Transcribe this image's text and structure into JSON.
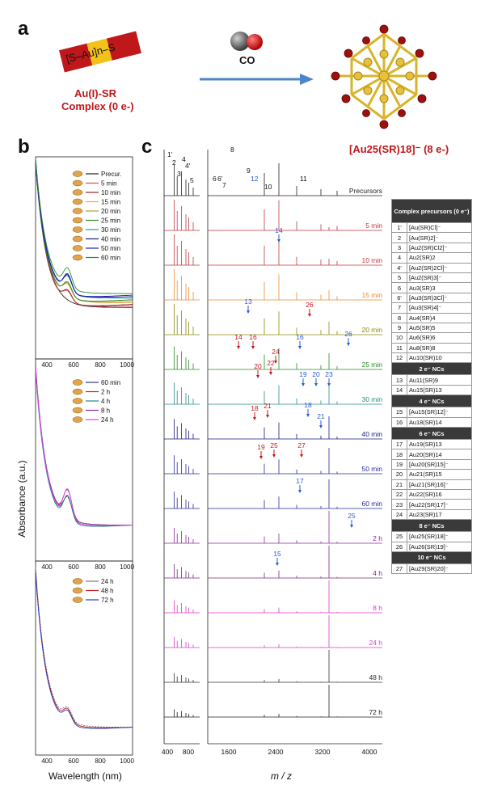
{
  "panel_a": {
    "label": "a",
    "complex_box": "[S–Au]n–S",
    "complex_name_line1": "Au(I)-SR",
    "complex_name_line2": "Complex (0 e-)",
    "reagent": "CO",
    "product": "[Au25(SR)18]⁻ (8 e-)"
  },
  "panel_b": {
    "label": "b",
    "y_axis_label": "Absorbance (a.u.)",
    "x_axis_label": "Wavelength (nm)",
    "x_ticks": [
      "400",
      "600",
      "800",
      "1000"
    ],
    "legend1": [
      "Precur.",
      "5 min",
      "10 min",
      "15 min",
      "20 min",
      "25 min",
      "30 min",
      "40 min",
      "50 min",
      "60 min"
    ],
    "legend2": [
      "60 min",
      "2 h",
      "4 h",
      "8 h",
      "24 h"
    ],
    "legend3": [
      "24 h",
      "48 h",
      "72 h"
    ],
    "colors1": [
      "#222222",
      "#e0474c",
      "#8a2a2a",
      "#f0a24a",
      "#b0a030",
      "#2e8b2e",
      "#2a9a9a",
      "#1a1a7a",
      "#2020c0",
      "#2a8a2a"
    ],
    "colors2": [
      "#2a3a8a",
      "#c02020",
      "#1a8a8a",
      "#8030a0",
      "#e040e0"
    ],
    "colors3": [
      "#777777",
      "#c02020",
      "#2040c0"
    ]
  },
  "panel_c": {
    "label": "c",
    "x_axis_label": "m / z",
    "x_ticks_left": [
      "400",
      "800"
    ],
    "x_ticks_right": [
      "1600",
      "2400",
      "3200",
      "4000"
    ],
    "traces": [
      {
        "label": "Precursors",
        "color": "#222222"
      },
      {
        "label": "5 min",
        "color": "#c0393e"
      },
      {
        "label": "10 min",
        "color": "#c0393e"
      },
      {
        "label": "15 min",
        "color": "#f08a30"
      },
      {
        "label": "20 min",
        "color": "#8a8a10"
      },
      {
        "label": "25 min",
        "color": "#2a8a2a"
      },
      {
        "label": "30 min",
        "color": "#2a8a8a"
      },
      {
        "label": "40 min",
        "color": "#1a1a80"
      },
      {
        "label": "50 min",
        "color": "#2a2aa0"
      },
      {
        "label": "60 min",
        "color": "#2a2aa0"
      },
      {
        "label": "2 h",
        "color": "#8a2aa0"
      },
      {
        "label": "4 h",
        "color": "#7a2a80"
      },
      {
        "label": "8 h",
        "color": "#e03ad0"
      },
      {
        "label": "24 h",
        "color": "#e03ad0"
      },
      {
        "label": "48 h",
        "color": "#333333"
      },
      {
        "label": "72 h",
        "color": "#222222"
      }
    ],
    "precursor_peak_labels": [
      "1'",
      "2",
      "3",
      "4",
      "4'",
      "5",
      "6",
      "6'",
      "7",
      "8",
      "9",
      "12",
      "10",
      "11"
    ],
    "annotations": {
      "t5": [
        "14"
      ],
      "t15": [
        "13",
        "26"
      ],
      "t20": [
        "14",
        "16",
        "16",
        "26"
      ],
      "t25": [
        "20",
        "22",
        "24",
        "19",
        "20",
        "23"
      ],
      "t30": [
        "18",
        "21",
        "18",
        "21"
      ],
      "t40": [
        "19",
        "25",
        "27"
      ],
      "t50": [
        "17"
      ],
      "t60": [
        "25"
      ],
      "t2h": [
        "15"
      ]
    }
  },
  "table": {
    "sections": [
      {
        "header": "Complex precursors (0 e⁻)",
        "rows": [
          [
            "1'",
            "[Au(SR)Cl]⁻"
          ],
          [
            "2",
            "[Au(SR)2]⁻"
          ],
          [
            "3",
            "[Au2(SR)Cl2]⁻"
          ],
          [
            "4",
            "Au2(SR)2"
          ],
          [
            "4'",
            "[Au2(SR)2Cl]⁻"
          ],
          [
            "5",
            "[Au2(SR)3]⁻"
          ],
          [
            "6",
            "Au3(SR)3"
          ],
          [
            "6'",
            "[Au3(SR)3Cl]⁻"
          ],
          [
            "7",
            "[Au3(SR)4]⁻"
          ],
          [
            "8",
            "Au4(SR)4"
          ],
          [
            "9",
            "Au5(SR)5"
          ],
          [
            "10",
            "Au6(SR)6"
          ],
          [
            "11",
            "Au8(SR)8"
          ],
          [
            "12",
            "Au10(SR)10"
          ]
        ]
      },
      {
        "header": "2 e⁻ NCs",
        "rows": [
          [
            "13",
            "Au11(SR)9"
          ],
          [
            "14",
            "Au15(SR)13"
          ]
        ]
      },
      {
        "header": "4 e⁻ NCs",
        "rows": [
          [
            "15",
            "[Au15(SR)12]⁻"
          ],
          [
            "16",
            "Au18(SR)14"
          ]
        ]
      },
      {
        "header": "6 e⁻ NCs",
        "rows": [
          [
            "17",
            "Au19(SR)13"
          ],
          [
            "18",
            "Au20(SR)14"
          ],
          [
            "19",
            "[Au20(SR)15]⁻"
          ],
          [
            "20",
            "Au21(SR)15"
          ],
          [
            "21",
            "[Au21(SR)16]⁻"
          ],
          [
            "22",
            "Au22(SR)16"
          ],
          [
            "23",
            "[Au22(SR)17]⁻"
          ],
          [
            "24",
            "Au23(SR)17"
          ]
        ]
      },
      {
        "header": "8 e⁻ NCs",
        "rows": [
          [
            "25",
            "[Au25(SR)18]⁻"
          ],
          [
            "26",
            "[Au26(SR)19]⁻"
          ]
        ]
      },
      {
        "header": "10 e⁻ NCs",
        "rows": [
          [
            "27",
            "[Au29(SR)20]⁻"
          ]
        ]
      }
    ]
  }
}
